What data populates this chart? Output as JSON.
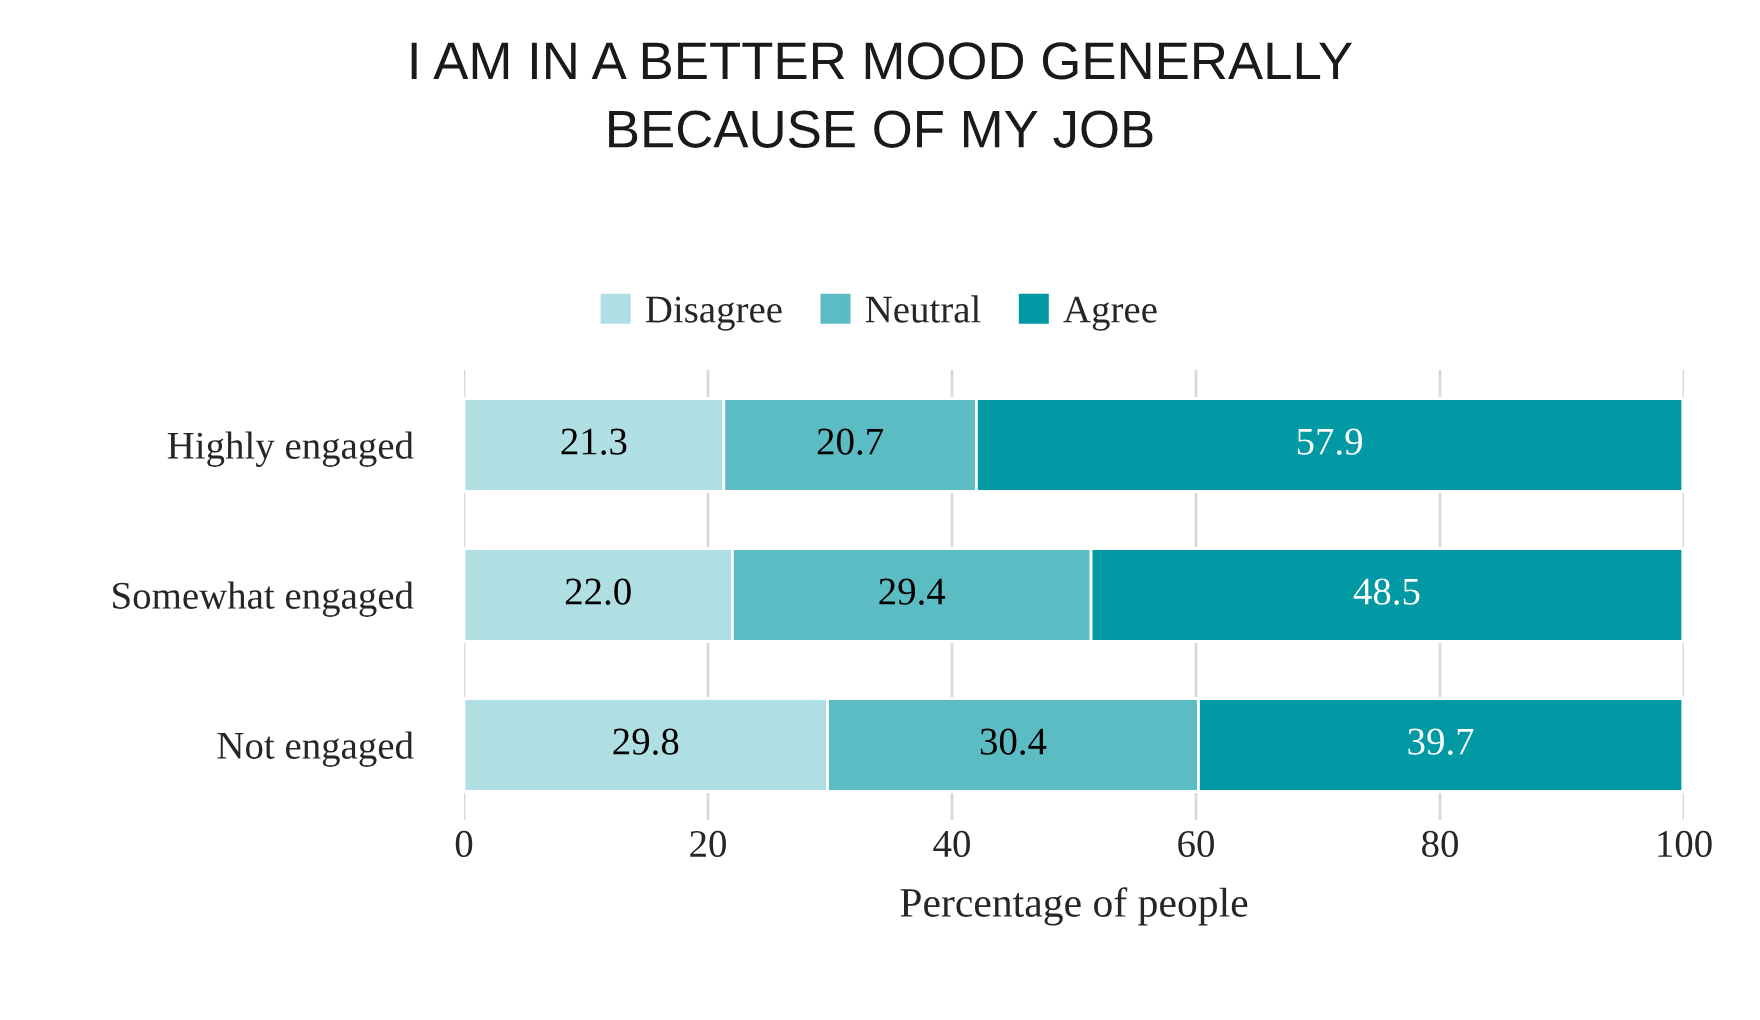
{
  "chart_data": {
    "type": "bar",
    "title": "I AM IN A BETTER MOOD GENERALLY BECAUSE OF MY JOB",
    "xlabel": "Percentage of people",
    "orientation": "horizontal",
    "stacked": true,
    "legend": "top",
    "grid": "x",
    "categories": [
      "Highly engaged",
      "Somewhat engaged",
      "Not engaged"
    ],
    "series": [
      {
        "name": "Disagree",
        "color": "#b0dfe3",
        "values": [
          21.3,
          22.0,
          29.8
        ],
        "value_labels": [
          "21.3",
          "22.0",
          "29.8"
        ]
      },
      {
        "name": "Neutral",
        "color": "#5bbcc4",
        "values": [
          20.7,
          29.4,
          30.4
        ],
        "value_labels": [
          "20.7",
          "29.4",
          "30.4"
        ]
      },
      {
        "name": "Agree",
        "color": "#0099a4",
        "values": [
          57.9,
          48.5,
          39.7
        ],
        "value_labels": [
          "57.9",
          "48.5",
          "39.7"
        ]
      }
    ],
    "xlim": [
      0,
      100
    ],
    "xticks": [
      0,
      20,
      40,
      60,
      80,
      100
    ]
  }
}
